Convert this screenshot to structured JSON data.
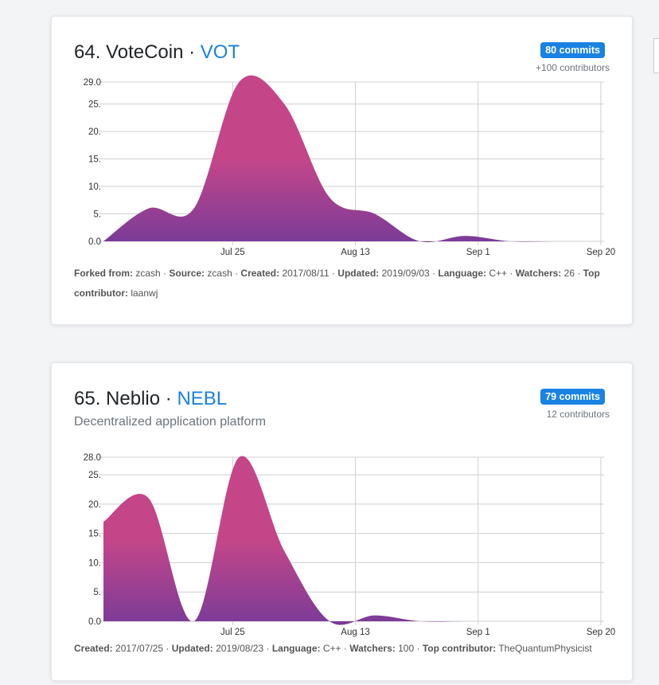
{
  "cards": [
    {
      "rank": "64.",
      "name": "VoteCoin",
      "sep": "·",
      "ticker": "VOT",
      "subtitle": "",
      "commits": "80 commits",
      "contributors": "+100 contributors",
      "meta": [
        {
          "label": "Forked from:",
          "value": "zcash"
        },
        {
          "label": "Source:",
          "value": "zcash"
        },
        {
          "label": "Created:",
          "value": "2017/08/11"
        },
        {
          "label": "Updated:",
          "value": "2019/09/03"
        },
        {
          "label": "Language:",
          "value": "C++"
        },
        {
          "label": "Watchers:",
          "value": "26"
        },
        {
          "label": "Top contributor:",
          "value": "laanwj"
        }
      ]
    },
    {
      "rank": "65.",
      "name": "Neblio",
      "sep": "·",
      "ticker": "NEBL",
      "subtitle": "Decentralized application platform",
      "commits": "79 commits",
      "contributors": "12 contributors",
      "meta": [
        {
          "label": "Created:",
          "value": "2017/07/25"
        },
        {
          "label": "Updated:",
          "value": "2019/08/23"
        },
        {
          "label": "Language:",
          "value": "C++"
        },
        {
          "label": "Watchers:",
          "value": "100"
        },
        {
          "label": "Top contributor:",
          "value": "TheQuantumPhysicist"
        }
      ]
    }
  ],
  "chart_data": [
    {
      "type": "area",
      "title": "",
      "xlabel": "",
      "ylabel": "",
      "x_tick_labels": [
        "Jul 25",
        "Aug 13",
        "Sep 1",
        "Sep 20"
      ],
      "x_tick_days": [
        31,
        50,
        69,
        88
      ],
      "y_ticks": [
        "0.0",
        "5.",
        "10.",
        "15.",
        "20.",
        "25.",
        "29.0"
      ],
      "ylim": [
        0,
        29
      ],
      "xlim_days": [
        11,
        88.5
      ],
      "grid": true,
      "gradient": [
        "#c44689",
        "#7a3b98"
      ],
      "x_days": [
        11,
        18,
        25,
        32,
        39,
        46,
        53,
        60,
        67,
        74,
        81,
        88
      ],
      "values": [
        0,
        6,
        6,
        29,
        25,
        8,
        5,
        0,
        1,
        0,
        0,
        0
      ]
    },
    {
      "type": "area",
      "title": "",
      "xlabel": "",
      "ylabel": "",
      "x_tick_labels": [
        "Jul 25",
        "Aug 13",
        "Sep 1",
        "Sep 20"
      ],
      "x_tick_days": [
        31,
        50,
        69,
        88
      ],
      "y_ticks": [
        "0.0",
        "5.",
        "10.",
        "15.",
        "20.",
        "25.",
        "28.0"
      ],
      "ylim": [
        0,
        28
      ],
      "xlim_days": [
        11,
        88.5
      ],
      "grid": true,
      "gradient": [
        "#c44689",
        "#7a3b98"
      ],
      "x_days": [
        11,
        18,
        25,
        32,
        39,
        46,
        53,
        60,
        67,
        74,
        81,
        88
      ],
      "values": [
        17,
        21,
        0,
        28,
        12,
        0,
        1,
        0,
        0,
        0,
        0,
        0
      ]
    }
  ]
}
